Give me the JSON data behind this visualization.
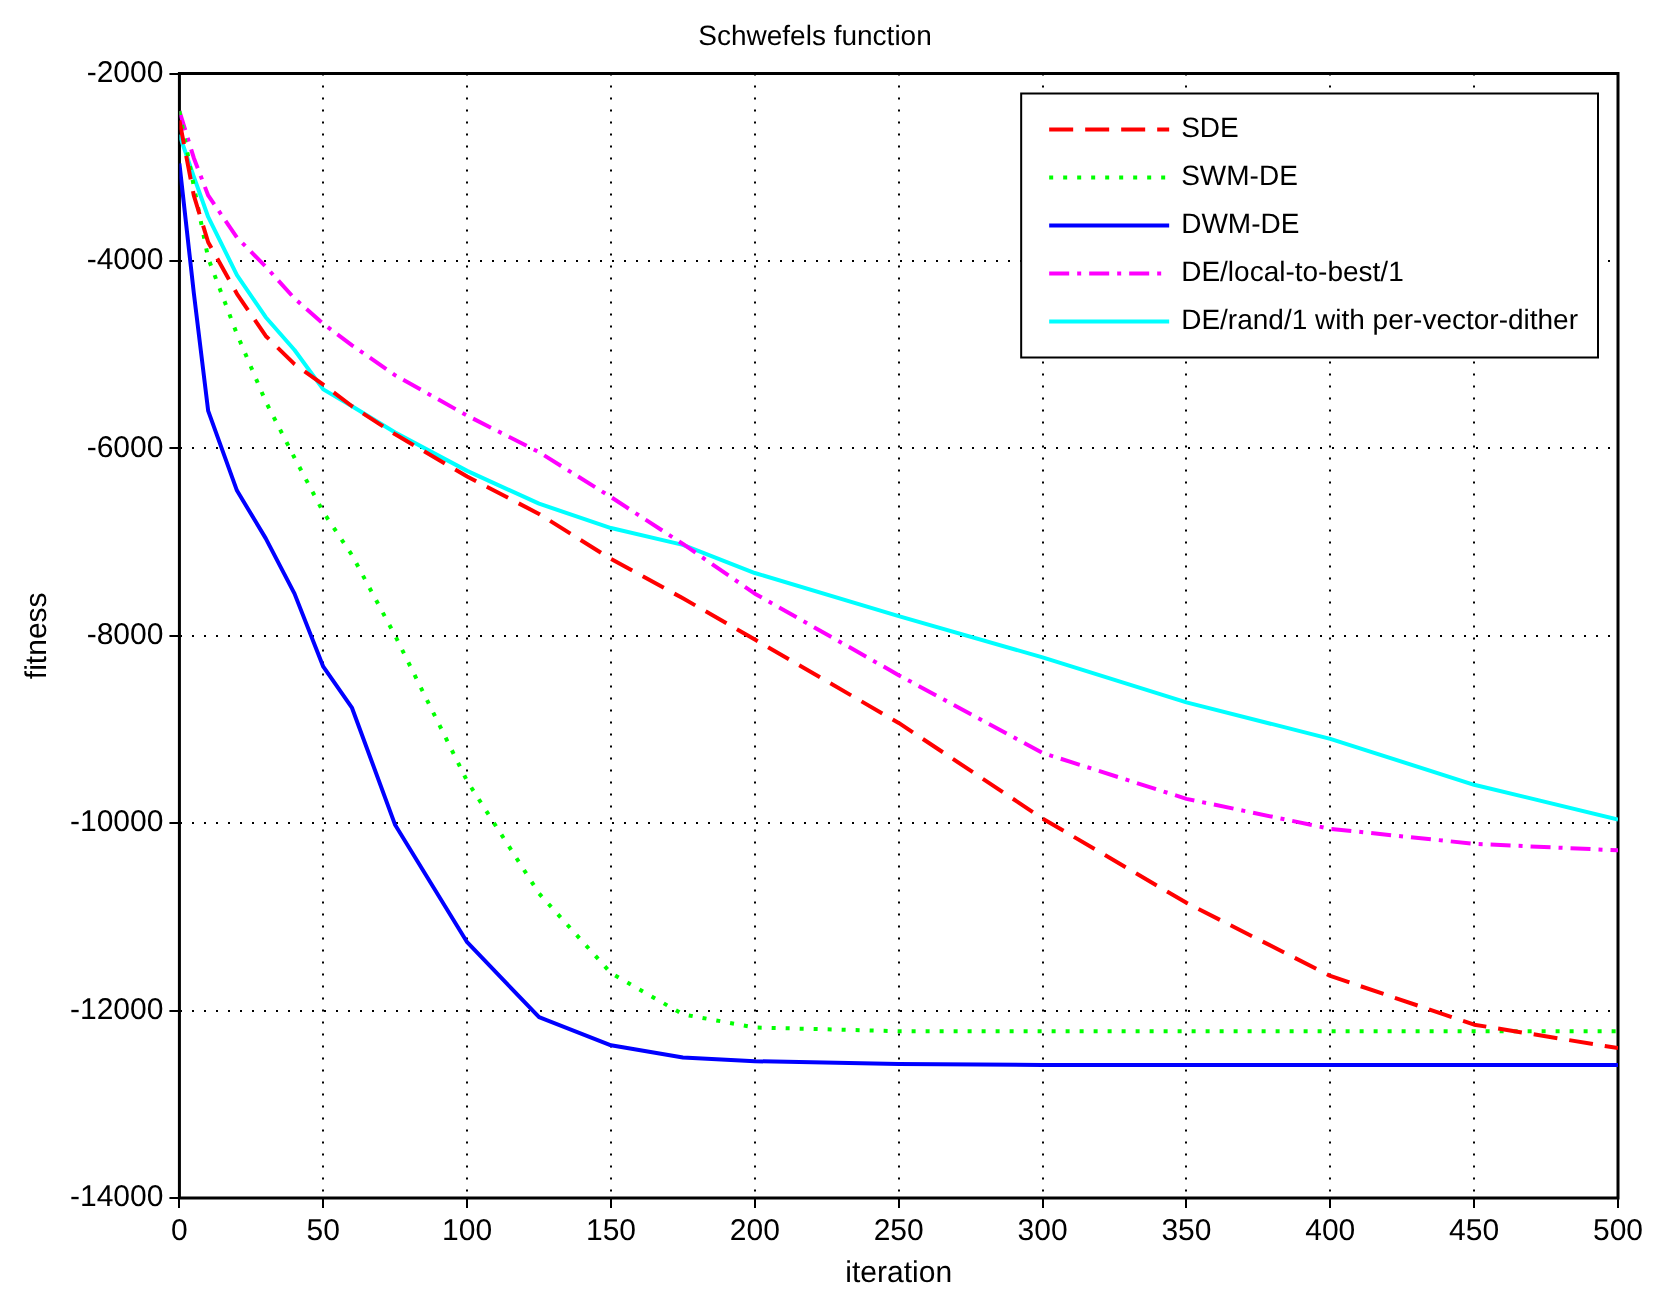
{
  "chart_data": {
    "type": "line",
    "title": "Schwefels function",
    "xlabel": "iteration",
    "ylabel": "fitness",
    "x": [
      0,
      5,
      10,
      20,
      30,
      40,
      50,
      60,
      75,
      100,
      125,
      150,
      175,
      200,
      250,
      300,
      350,
      400,
      450,
      500
    ],
    "xlim": [
      0,
      500
    ],
    "xticks": [
      0,
      50,
      100,
      150,
      200,
      250,
      300,
      350,
      400,
      450,
      500
    ],
    "ylim": [
      -14000,
      -2000
    ],
    "yticks": [
      -14000,
      -12000,
      -10000,
      -8000,
      -6000,
      -4000,
      -2000
    ],
    "grid": true,
    "legend": "top right",
    "marker": "none",
    "series": [
      {
        "name": "SDE",
        "color": "#ff0000",
        "line_style": "dashed",
        "values": [
          -2500,
          -3300,
          -3800,
          -4350,
          -4800,
          -5100,
          -5320,
          -5550,
          -5850,
          -6300,
          -6700,
          -7180,
          -7600,
          -8040,
          -8930,
          -9950,
          -10850,
          -11630,
          -12150,
          -12400
        ]
      },
      {
        "name": "SWM-DE",
        "color": "#00ff00",
        "line_style": "dotted",
        "values": [
          -2400,
          -3200,
          -3970,
          -4780,
          -5500,
          -6100,
          -6680,
          -7140,
          -8000,
          -9550,
          -10750,
          -11600,
          -12040,
          -12180,
          -12220,
          -12220,
          -12220,
          -12220,
          -12220,
          -12220
        ]
      },
      {
        "name": "DWM-DE",
        "color": "#0000ff",
        "line_style": "solid",
        "values": [
          -2960,
          -4340,
          -5600,
          -6450,
          -6960,
          -7550,
          -8330,
          -8770,
          -10020,
          -11270,
          -12070,
          -12370,
          -12500,
          -12540,
          -12570,
          -12580,
          -12580,
          -12580,
          -12580,
          -12580
        ]
      },
      {
        "name": "DE/local-to-best/1",
        "color": "#ff00ff",
        "line_style": "dashdot",
        "values": [
          -2400,
          -2900,
          -3300,
          -3750,
          -4060,
          -4400,
          -4670,
          -4900,
          -5220,
          -5650,
          -6040,
          -6520,
          -7020,
          -7550,
          -8420,
          -9250,
          -9740,
          -10060,
          -10220,
          -10290
        ]
      },
      {
        "name": "DE/rand/1 with per-vector-dither",
        "color": "#00ffff",
        "line_style": "solid",
        "values": [
          -2650,
          -3100,
          -3530,
          -4150,
          -4600,
          -4950,
          -5370,
          -5550,
          -5830,
          -6240,
          -6590,
          -6850,
          -7030,
          -7330,
          -7790,
          -8230,
          -8710,
          -9100,
          -9590,
          -9960
        ]
      }
    ]
  }
}
